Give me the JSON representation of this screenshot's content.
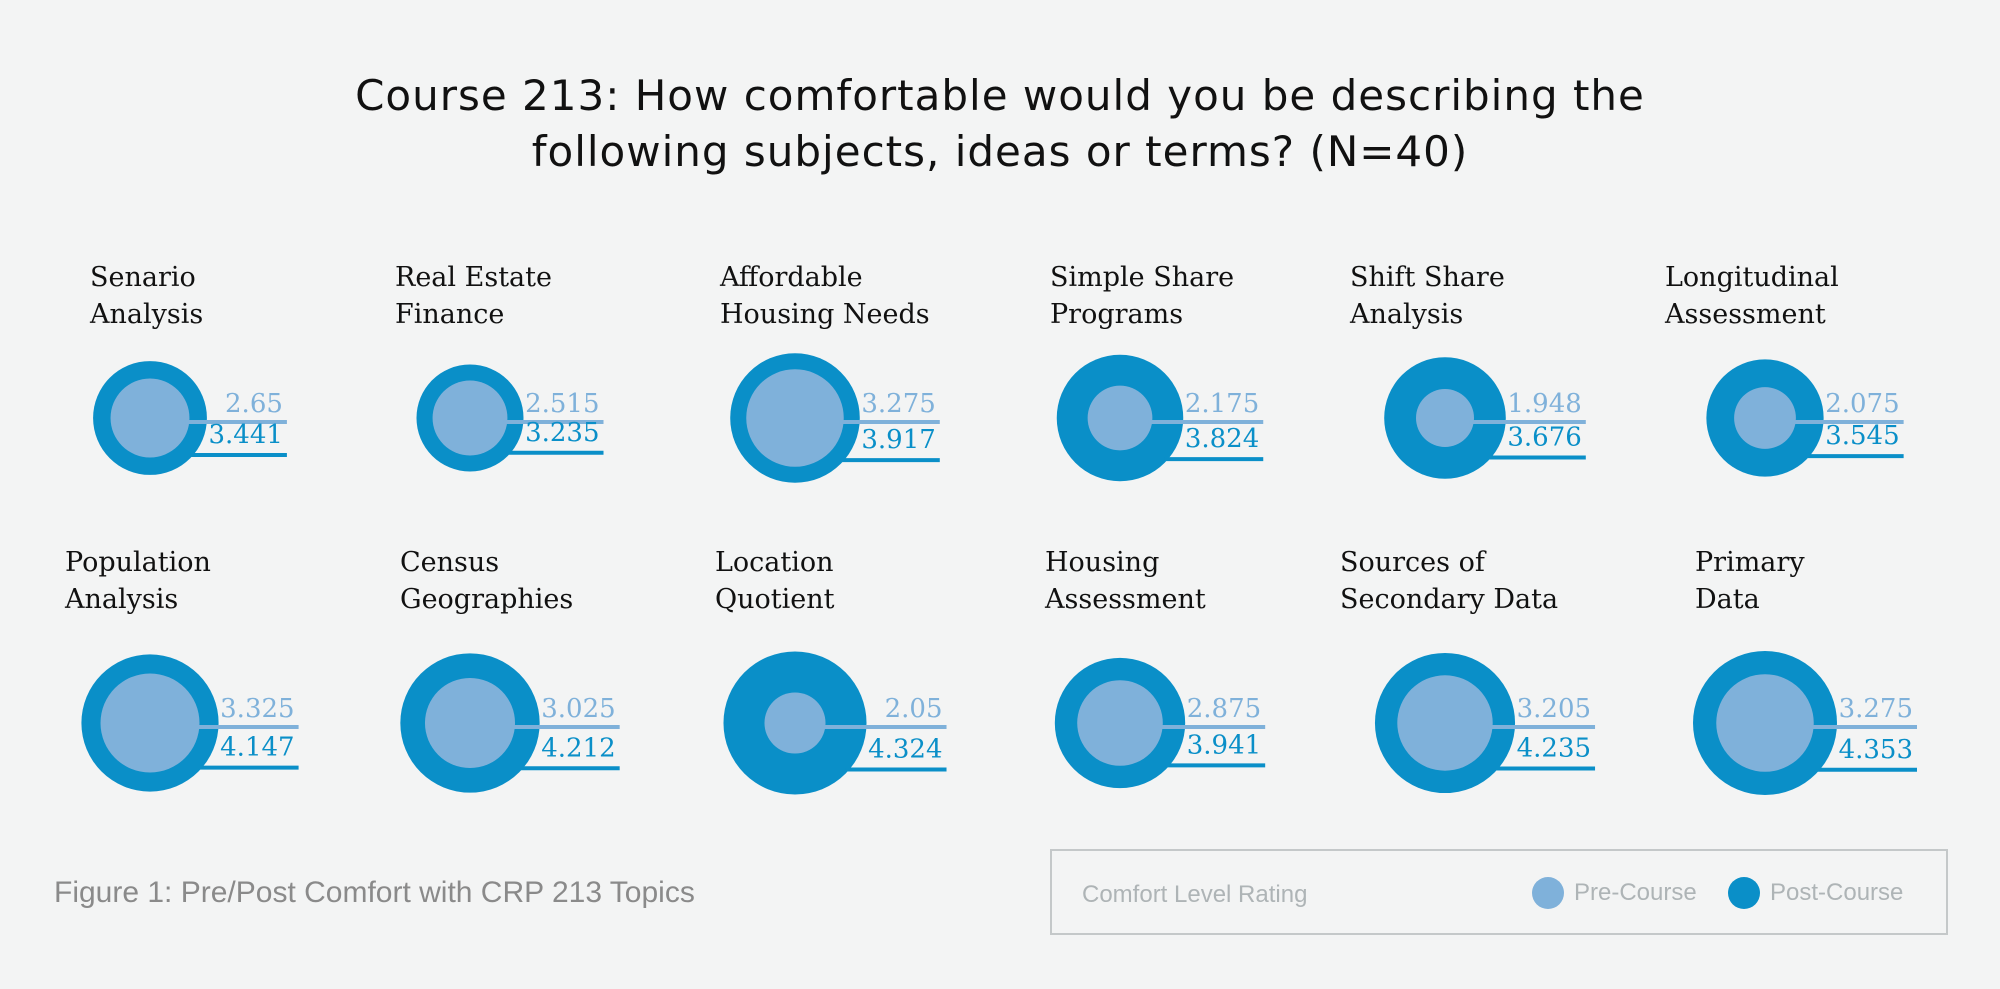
{
  "chart_data": {
    "type": "bubble-comparison",
    "title_lines": [
      "Course 213: How comfortable would you be describing the",
      "following subjects, ideas or terms? (N=40)"
    ],
    "caption": "Figure 1: Pre/Post Comfort with CRP 213 Topics",
    "legend": {
      "title": "Comfort Level Rating",
      "items": [
        {
          "label": "Pre-Course",
          "color": "#7fb1da"
        },
        {
          "label": "Post-Course",
          "color": "#0a8fc8"
        }
      ]
    },
    "colors": {
      "pre": "#7fb1da",
      "post": "#0a8fc8"
    },
    "panels": [
      {
        "label": [
          "Senario",
          "Analysis"
        ],
        "pre": 2.65,
        "pre_text": "2.65",
        "post": 3.441,
        "post_text": "3.441"
      },
      {
        "label": [
          "Real Estate",
          "Finance"
        ],
        "pre": 2.515,
        "pre_text": "2.515",
        "post": 3.235,
        "post_text": "3.235"
      },
      {
        "label": [
          "Affordable",
          "Housing Needs"
        ],
        "pre": 3.275,
        "pre_text": "3.275",
        "post": 3.917,
        "post_text": "3.917"
      },
      {
        "label": [
          "Simple Share",
          "Programs"
        ],
        "pre": 2.175,
        "pre_text": "2.175",
        "post": 3.824,
        "post_text": "3.824"
      },
      {
        "label": [
          "Shift Share",
          "Analysis"
        ],
        "pre": 1.948,
        "pre_text": "1.948",
        "post": 3.676,
        "post_text": "3.676"
      },
      {
        "label": [
          "Longitudinal",
          "Assessment"
        ],
        "pre": 2.075,
        "pre_text": "2.075",
        "post": 3.545,
        "post_text": "3.545"
      },
      {
        "label": [
          "Population",
          "Analysis"
        ],
        "pre": 3.325,
        "pre_text": "3.325",
        "post": 4.147,
        "post_text": "4.147"
      },
      {
        "label": [
          "Census",
          "Geographies"
        ],
        "pre": 3.025,
        "pre_text": "3.025",
        "post": 4.212,
        "post_text": "4.212"
      },
      {
        "label": [
          "Location",
          "Quotient"
        ],
        "pre": 2.05,
        "pre_text": "2.05",
        "post": 4.324,
        "post_text": "4.324"
      },
      {
        "label": [
          "Housing",
          "Assessment"
        ],
        "pre": 2.875,
        "pre_text": "2.875",
        "post": 3.941,
        "post_text": "3.941"
      },
      {
        "label": [
          "Sources of",
          "Secondary Data"
        ],
        "pre": 3.205,
        "pre_text": "3.205",
        "post": 4.235,
        "post_text": "4.235"
      },
      {
        "label": [
          "Primary",
          "Data"
        ],
        "pre": 3.275,
        "pre_text": "3.275",
        "post": 4.353,
        "post_text": "4.353"
      }
    ]
  }
}
